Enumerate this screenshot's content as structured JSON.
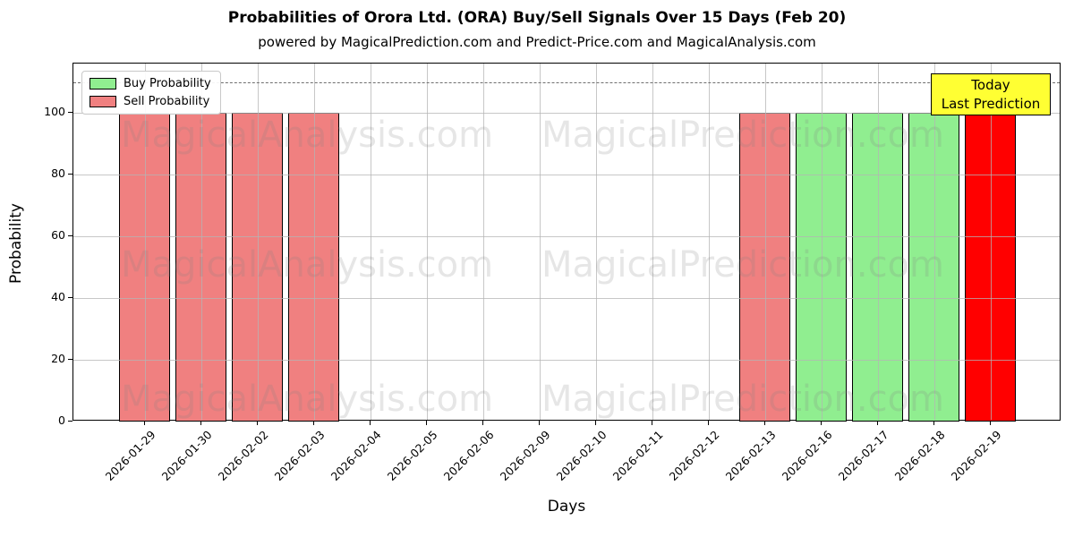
{
  "chart_data": {
    "type": "bar",
    "title": "Probabilities of Orora Ltd. (ORA) Buy/Sell Signals Over 15 Days (Feb 20)",
    "subtitle": "powered by MagicalPrediction.com and Predict-Price.com and MagicalAnalysis.com",
    "xlabel": "Days",
    "ylabel": "Probability",
    "categories": [
      "2026-01-29",
      "2026-01-30",
      "2026-02-02",
      "2026-02-03",
      "2026-02-04",
      "2026-02-05",
      "2026-02-06",
      "2026-02-09",
      "2026-02-10",
      "2026-02-11",
      "2026-02-12",
      "2026-02-13",
      "2026-02-16",
      "2026-02-17",
      "2026-02-18",
      "2026-02-19"
    ],
    "bars": [
      {
        "date": "2026-01-29",
        "value": 100,
        "kind": "sell"
      },
      {
        "date": "2026-01-30",
        "value": 100,
        "kind": "sell"
      },
      {
        "date": "2026-02-02",
        "value": 100,
        "kind": "sell"
      },
      {
        "date": "2026-02-03",
        "value": 100,
        "kind": "sell"
      },
      {
        "date": "2026-02-04",
        "value": 0,
        "kind": "none"
      },
      {
        "date": "2026-02-05",
        "value": 0,
        "kind": "none"
      },
      {
        "date": "2026-02-06",
        "value": 0,
        "kind": "none"
      },
      {
        "date": "2026-02-09",
        "value": 0,
        "kind": "none"
      },
      {
        "date": "2026-02-10",
        "value": 0,
        "kind": "none"
      },
      {
        "date": "2026-02-11",
        "value": 0,
        "kind": "none"
      },
      {
        "date": "2026-02-12",
        "value": 0,
        "kind": "none"
      },
      {
        "date": "2026-02-13",
        "value": 100,
        "kind": "sell"
      },
      {
        "date": "2026-02-16",
        "value": 100,
        "kind": "buy"
      },
      {
        "date": "2026-02-17",
        "value": 100,
        "kind": "buy"
      },
      {
        "date": "2026-02-18",
        "value": 100,
        "kind": "buy"
      },
      {
        "date": "2026-02-19",
        "value": 100,
        "kind": "today"
      }
    ],
    "series": [
      {
        "name": "Buy Probability",
        "color": "#90ee90",
        "values": [
          0,
          0,
          0,
          0,
          0,
          0,
          0,
          0,
          0,
          0,
          0,
          0,
          100,
          100,
          100,
          0
        ]
      },
      {
        "name": "Sell Probability",
        "color": "#f08080",
        "values": [
          100,
          100,
          100,
          100,
          0,
          0,
          0,
          0,
          0,
          0,
          0,
          100,
          0,
          0,
          0,
          0
        ]
      },
      {
        "name": "Today Last Prediction",
        "color": "#ff0000",
        "values": [
          0,
          0,
          0,
          0,
          0,
          0,
          0,
          0,
          0,
          0,
          0,
          0,
          0,
          0,
          0,
          100
        ]
      }
    ],
    "ylim": [
      0,
      116
    ],
    "yticks": [
      0,
      20,
      40,
      60,
      80,
      100
    ],
    "threshold_line": {
      "y": 110,
      "style": "dashed",
      "color": "#6e6e6e"
    },
    "grid": true,
    "legend_position": "upper left",
    "legend": {
      "items": [
        {
          "label": "Buy Probability",
          "color": "#90ee90"
        },
        {
          "label": "Sell Probability",
          "color": "#f08080"
        }
      ]
    },
    "colors": {
      "buy": "#90ee90",
      "sell": "#f08080",
      "today": "#ff0000",
      "edge": "#000000",
      "grid": "#b4b4b4",
      "annotation_bg": "#ffff33",
      "annotation_border": "#000000"
    },
    "annotation": {
      "line1": "Today",
      "line2": "Last Prediction"
    },
    "watermarks": {
      "left_text": "MagicalAnalysis.com",
      "right_text": "MagicalPrediction.com"
    }
  }
}
